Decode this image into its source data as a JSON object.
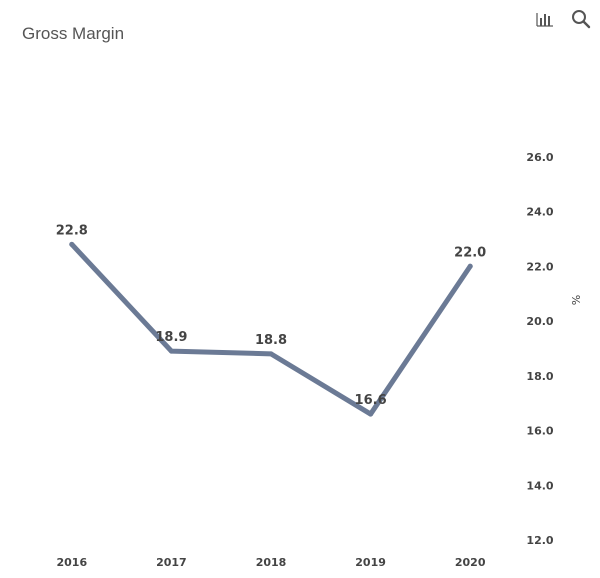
{
  "chart": {
    "title": "Gross Margin"
  },
  "toolbar": {
    "icons": [
      "bar-chart-icon",
      "search-icon"
    ]
  },
  "chart_data": {
    "type": "line",
    "title": "Gross Margin",
    "xlabel": "",
    "ylabel": "%",
    "categories": [
      "2016",
      "2017",
      "2018",
      "2019",
      "2020"
    ],
    "series": [
      {
        "values": [
          22.8,
          18.9,
          18.8,
          16.6,
          22.0
        ]
      }
    ],
    "data_labels": [
      "22.8",
      "18.9",
      "18.8",
      "16.6",
      "22.0"
    ],
    "yticks": [
      "12.0",
      "14.0",
      "16.0",
      "18.0",
      "20.0",
      "22.0",
      "24.0",
      "26.0"
    ],
    "ylim": [
      12,
      28
    ],
    "y_axis_side": "right",
    "grid": false,
    "line_color": "#6b7a95"
  }
}
